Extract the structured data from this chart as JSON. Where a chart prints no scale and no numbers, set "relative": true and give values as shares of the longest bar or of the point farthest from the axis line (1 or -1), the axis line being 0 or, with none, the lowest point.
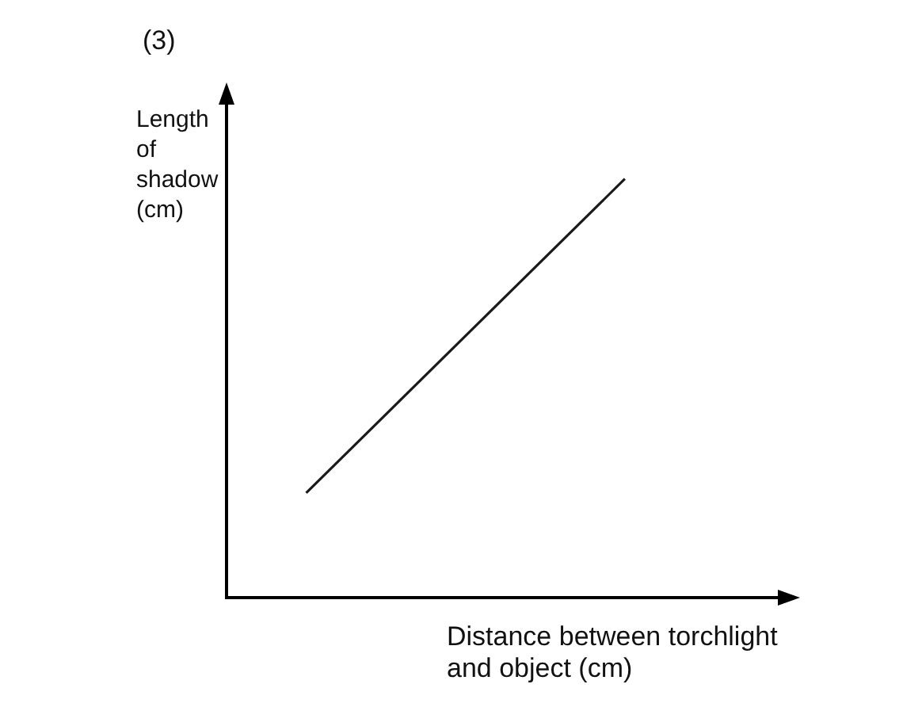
{
  "chart_data": {
    "type": "line",
    "title": "(3)",
    "ylabel": "Length of shadow (cm)",
    "xlabel": "Distance between torchlight and object (cm)",
    "relative": true,
    "categories": [
      null,
      null,
      null,
      null,
      null,
      null,
      null,
      null
    ],
    "series": [
      {
        "color": "#1a1a1a",
        "values": [
          null,
          0.25,
          null,
          null,
          null,
          1,
          null,
          null
        ]
      }
    ],
    "legend": false,
    "marker": "none",
    "line_style": "solid"
  }
}
